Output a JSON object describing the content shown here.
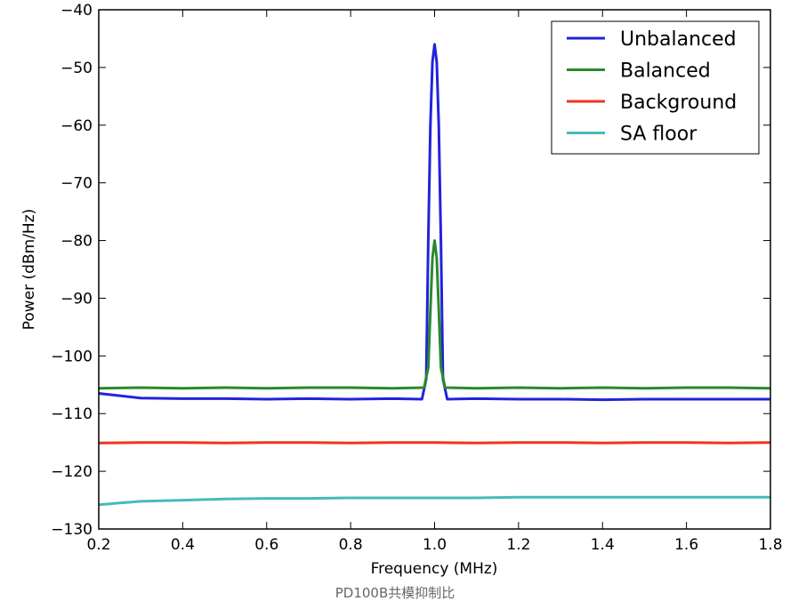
{
  "chart_data": {
    "type": "line",
    "xlabel": "Frequency (MHz)",
    "ylabel": "Power (dBm/Hz)",
    "xlim": [
      0.2,
      1.8
    ],
    "ylim": [
      -130,
      -40
    ],
    "xticks": [
      0.2,
      0.4,
      0.6,
      0.8,
      1.0,
      1.2,
      1.4,
      1.6,
      1.8
    ],
    "xtick_labels": [
      "0.2",
      "0.4",
      "0.6",
      "0.8",
      "1.0",
      "1.2",
      "1.4",
      "1.6",
      "1.8"
    ],
    "yticks": [
      -40,
      -50,
      -60,
      -70,
      -80,
      -90,
      -100,
      -110,
      -120,
      -130
    ],
    "ytick_labels": [
      "−40",
      "−50",
      "−60",
      "−70",
      "−80",
      "−90",
      "−100",
      "−110",
      "−120",
      "−130"
    ],
    "grid": false,
    "legend_position": "top-right",
    "series": [
      {
        "name": "Unbalanced",
        "color": "#2222dd",
        "x": [
          0.2,
          0.3,
          0.4,
          0.5,
          0.6,
          0.7,
          0.8,
          0.9,
          0.97,
          0.98,
          0.985,
          0.99,
          0.995,
          1.0,
          1.005,
          1.01,
          1.015,
          1.02,
          1.03,
          1.1,
          1.2,
          1.3,
          1.4,
          1.5,
          1.6,
          1.7,
          1.8
        ],
        "y": [
          -106.5,
          -107.3,
          -107.4,
          -107.4,
          -107.5,
          -107.4,
          -107.5,
          -107.4,
          -107.5,
          -104,
          -80,
          -60,
          -49,
          -46,
          -49,
          -60,
          -80,
          -104,
          -107.5,
          -107.4,
          -107.5,
          -107.5,
          -107.6,
          -107.5,
          -107.5,
          -107.5,
          -107.5
        ]
      },
      {
        "name": "Balanced",
        "color": "#2a8a2a",
        "x": [
          0.2,
          0.3,
          0.4,
          0.5,
          0.6,
          0.7,
          0.8,
          0.9,
          0.975,
          0.985,
          0.99,
          0.995,
          1.0,
          1.005,
          1.01,
          1.015,
          1.025,
          1.1,
          1.2,
          1.3,
          1.4,
          1.5,
          1.6,
          1.7,
          1.8
        ],
        "y": [
          -105.6,
          -105.5,
          -105.6,
          -105.5,
          -105.6,
          -105.5,
          -105.5,
          -105.6,
          -105.5,
          -102,
          -92,
          -83,
          -80,
          -83,
          -92,
          -102,
          -105.5,
          -105.6,
          -105.5,
          -105.6,
          -105.5,
          -105.6,
          -105.5,
          -105.5,
          -105.6
        ]
      },
      {
        "name": "Background",
        "color": "#ee3322",
        "x": [
          0.2,
          0.3,
          0.4,
          0.5,
          0.6,
          0.7,
          0.8,
          0.9,
          1.0,
          1.1,
          1.2,
          1.3,
          1.4,
          1.5,
          1.6,
          1.7,
          1.8
        ],
        "y": [
          -115.1,
          -115.0,
          -115.0,
          -115.1,
          -115.0,
          -115.0,
          -115.1,
          -115.0,
          -115.0,
          -115.1,
          -115.0,
          -115.0,
          -115.1,
          -115.0,
          -115.0,
          -115.1,
          -115.0
        ]
      },
      {
        "name": "SA floor",
        "color": "#44bbbb",
        "x": [
          0.2,
          0.25,
          0.3,
          0.4,
          0.5,
          0.6,
          0.7,
          0.8,
          0.9,
          1.0,
          1.1,
          1.2,
          1.3,
          1.4,
          1.5,
          1.6,
          1.7,
          1.8
        ],
        "y": [
          -125.8,
          -125.5,
          -125.2,
          -125.0,
          -124.8,
          -124.7,
          -124.7,
          -124.6,
          -124.6,
          -124.6,
          -124.6,
          -124.5,
          -124.5,
          -124.5,
          -124.5,
          -124.5,
          -124.5,
          -124.5
        ]
      }
    ]
  },
  "caption": "PD100B共模抑制比"
}
